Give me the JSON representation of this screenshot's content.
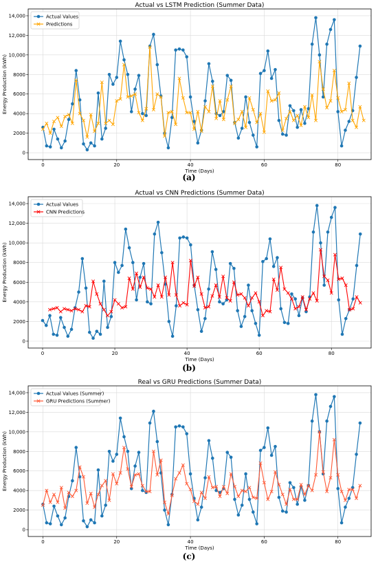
{
  "chart_data": [
    {
      "type": "line",
      "title": "Actual vs LSTM Prediction (Summer Data)",
      "xlabel": "Time (Days)",
      "ylabel": "Energy Production (kWh)",
      "caption": "(a)",
      "xlim": [
        -4,
        89
      ],
      "ylim": [
        -700,
        14700
      ],
      "xticks": [
        0,
        20,
        40,
        60,
        80
      ],
      "yticks": [
        0,
        2000,
        4000,
        6000,
        8000,
        10000,
        12000,
        14000
      ],
      "ytick_labels": [
        "0",
        "2000",
        "4000",
        "6000",
        "8000",
        "10,000",
        "12,000",
        "14,000"
      ],
      "grid": true,
      "legend_position": "top-left",
      "colors": {
        "actual": "#1f77b4",
        "pred": "#ffa500"
      },
      "series": [
        {
          "name": "Actual Values",
          "marker": "circle",
          "x_start": 0,
          "values": [
            2600,
            700,
            600,
            2400,
            1400,
            500,
            1200,
            3400,
            5000,
            8400,
            5400,
            900,
            300,
            1000,
            700,
            6100,
            1400,
            2500,
            8000,
            7000,
            7700,
            11400,
            9500,
            8000,
            4200,
            6500,
            7900,
            4000,
            3800,
            10900,
            12100,
            9000,
            5800,
            2000,
            500,
            3600,
            10500,
            10600,
            10500,
            9800,
            5700,
            3200,
            1000,
            2300,
            5300,
            9100,
            7300,
            4000,
            3800,
            4200,
            7900,
            7400,
            3100,
            1500,
            2500,
            5700,
            3100,
            1800,
            600,
            8100,
            8400,
            10400,
            7600,
            8500,
            3300,
            1900,
            1800,
            4800,
            4300,
            2600,
            4400,
            3000,
            4500,
            11100,
            13800,
            10000,
            5700,
            11100,
            12600,
            13600,
            4200,
            700,
            2300,
            3200,
            4300,
            7700,
            10900
          ]
        },
        {
          "name": "Predictions",
          "marker": "x",
          "x_start": 0,
          "values": [
            2400,
            3000,
            2000,
            3200,
            3600,
            2700,
            3700,
            3900,
            3000,
            7400,
            4000,
            3300,
            1600,
            3900,
            2200,
            3000,
            7200,
            3000,
            3300,
            2900,
            5300,
            5500,
            9000,
            5700,
            5800,
            6000,
            4100,
            3300,
            4500,
            10800,
            4400,
            6000,
            5700,
            1700,
            4100,
            4200,
            2900,
            7600,
            5600,
            4100,
            4100,
            2400,
            4200,
            2200,
            4700,
            4200,
            6800,
            3500,
            5300,
            3400,
            5400,
            6800,
            3000,
            3400,
            4200,
            2600,
            5600,
            4400,
            3100,
            4000,
            2100,
            6300,
            5300,
            5400,
            6100,
            2300,
            3500,
            4200,
            3300,
            3800,
            2800,
            4700,
            3600,
            5900,
            3300,
            9300,
            6500,
            4600,
            5300,
            8400,
            5600,
            4200,
            4400,
            7100,
            3300,
            2600,
            4700,
            3300
          ]
        }
      ]
    },
    {
      "type": "line",
      "title": "Actual vs CNN Predictions (Summer Data)",
      "xlabel": "Time (Days)",
      "ylabel": "Energy Production (kWh)",
      "caption": "(b)",
      "xlim": [
        -4,
        91
      ],
      "ylim": [
        -700,
        14700
      ],
      "xticks": [
        0,
        20,
        40,
        60,
        80
      ],
      "yticks": [
        0,
        2000,
        4000,
        6000,
        8000,
        10000,
        12000,
        14000
      ],
      "ytick_labels": [
        "0",
        "2000",
        "4000",
        "6000",
        "8000",
        "10,000",
        "12,000",
        "14,000"
      ],
      "grid": true,
      "legend_position": "top-left",
      "colors": {
        "actual": "#1f77b4",
        "pred": "#ff0000"
      },
      "series": [
        {
          "name": "Actual Values",
          "marker": "circle",
          "x_start": 0,
          "values": [
            2100,
            1600,
            2600,
            700,
            600,
            2400,
            1400,
            500,
            1200,
            3400,
            5000,
            8400,
            5400,
            900,
            300,
            1000,
            700,
            6100,
            1400,
            2500,
            8000,
            7000,
            7700,
            11400,
            9500,
            8000,
            4200,
            6500,
            7900,
            4000,
            3800,
            10900,
            12100,
            9000,
            5800,
            2000,
            500,
            3600,
            10500,
            10600,
            10500,
            9800,
            5700,
            3200,
            1000,
            2300,
            5300,
            9100,
            7300,
            4000,
            3800,
            4200,
            7900,
            7400,
            3100,
            1500,
            2500,
            5700,
            3100,
            1800,
            600,
            8100,
            8400,
            10400,
            7600,
            8500,
            3300,
            1900,
            1800,
            4800,
            4300,
            2600,
            4400,
            3000,
            4500,
            11100,
            13800,
            10000,
            5700,
            11100,
            12600,
            13600,
            4200,
            700,
            2300,
            3200,
            4300,
            7700,
            10900
          ]
        },
        {
          "name": "CNN Predictions",
          "marker": "x",
          "x_start": 2,
          "values": [
            3200,
            3300,
            3400,
            3000,
            3300,
            3200,
            3100,
            3300,
            3200,
            3000,
            3600,
            3500,
            6100,
            4800,
            3800,
            3200,
            2600,
            3000,
            4200,
            3800,
            3400,
            3500,
            6400,
            5300,
            6900,
            5500,
            6500,
            5400,
            5300,
            4500,
            5700,
            4500,
            6500,
            4700,
            8000,
            4700,
            3600,
            3900,
            3700,
            8200,
            5600,
            6500,
            4800,
            3400,
            3500,
            4600,
            5700,
            4500,
            6600,
            4400,
            4100,
            6000,
            4700,
            4800,
            4400,
            3600,
            4400,
            4900,
            4000,
            2600,
            3100,
            3000,
            6300,
            5200,
            7500,
            5300,
            4900,
            4300,
            3300,
            3500,
            4500,
            3200,
            4300,
            4900,
            4100,
            9300,
            6600,
            6200,
            4900,
            8800,
            6300,
            6400,
            5700,
            3200,
            3300,
            4500,
            3900
          ]
        }
      ]
    },
    {
      "type": "line",
      "title": "Real vs GRU Predictions (Summer Data)",
      "xlabel": "Time (Days)",
      "ylabel": "Energy Production (kWh)",
      "caption": "(c)",
      "xlim": [
        -4,
        89
      ],
      "ylim": [
        -700,
        14700
      ],
      "xticks": [
        0,
        20,
        40,
        60,
        80
      ],
      "yticks": [
        0,
        2000,
        4000,
        6000,
        8000,
        10000,
        12000,
        14000
      ],
      "ytick_labels": [
        "0",
        "2000",
        "4000",
        "6000",
        "8000",
        "10,000",
        "12,000",
        "14,000"
      ],
      "grid": true,
      "legend_position": "top-left",
      "colors": {
        "actual": "#1f77b4",
        "pred": "#ff5733"
      },
      "series": [
        {
          "name": "Actual Values (Summer)",
          "marker": "circle",
          "x_start": 0,
          "values": [
            2600,
            700,
            600,
            2400,
            1400,
            500,
            1200,
            3400,
            5000,
            8400,
            5400,
            900,
            300,
            1000,
            700,
            6100,
            1400,
            2500,
            8000,
            7000,
            7700,
            11400,
            9500,
            8000,
            4200,
            6500,
            7900,
            4000,
            3800,
            10900,
            12100,
            9000,
            5800,
            2000,
            500,
            3600,
            10500,
            10600,
            10500,
            9800,
            5700,
            3200,
            1000,
            2300,
            5300,
            9100,
            7300,
            4000,
            3800,
            4200,
            7900,
            7400,
            3100,
            1500,
            2500,
            5700,
            3100,
            1800,
            600,
            8100,
            8400,
            10400,
            7600,
            8500,
            3300,
            1900,
            1800,
            4800,
            4300,
            2600,
            4400,
            3000,
            4500,
            11100,
            13800,
            10000,
            5700,
            11100,
            12600,
            13600,
            4200,
            700,
            2300,
            3200,
            4300,
            7700,
            10900
          ]
        },
        {
          "name": "GRU Predictions (Summer)",
          "marker": "x",
          "x_start": 0,
          "values": [
            2500,
            4000,
            2800,
            3600,
            2800,
            4300,
            2200,
            3800,
            3400,
            4000,
            6400,
            5400,
            2700,
            3700,
            2300,
            3600,
            4500,
            5000,
            3000,
            5700,
            4700,
            5800,
            8400,
            6200,
            4400,
            5600,
            5700,
            4500,
            3900,
            3900,
            8000,
            5600,
            7100,
            2800,
            1600,
            3500,
            5200,
            5800,
            6600,
            4700,
            4100,
            2900,
            2600,
            3800,
            3200,
            5400,
            4300,
            4400,
            3400,
            4400,
            3700,
            5700,
            4400,
            3400,
            4000,
            3900,
            4300,
            3300,
            3200,
            6800,
            4800,
            3100,
            3900,
            5900,
            4600,
            3600,
            2600,
            4100,
            3100,
            3100,
            4600,
            3600,
            4500,
            4000,
            5600,
            10000,
            5900,
            3900,
            5300,
            9200,
            5600,
            3900,
            3000,
            4100,
            4100,
            3200,
            4500
          ]
        }
      ]
    }
  ]
}
